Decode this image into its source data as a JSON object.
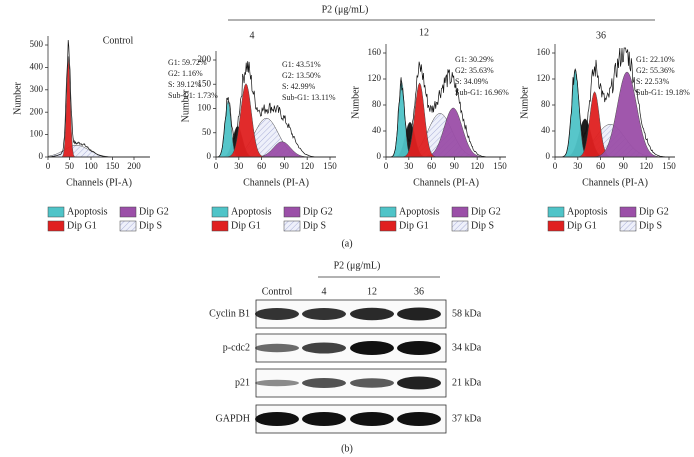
{
  "panel_a": {
    "header": "P2 (μg/mL)",
    "label": "(a)",
    "plots": [
      {
        "title": "Control",
        "stats": [
          "G1: 59.72%",
          "G2: 1.16%",
          "S: 39.12%",
          "Sub-G1: 1.73%"
        ],
        "xlabel": "Channels (PI-A)",
        "ylabel": "Number",
        "xticks": [
          "0",
          "50",
          "100",
          "150",
          "200"
        ],
        "yticks": [
          "0",
          "100",
          "200",
          "300",
          "400",
          "500"
        ],
        "legend": [
          "Apoptosis",
          "Dip G2",
          "Dip G1",
          "Dip S"
        ]
      },
      {
        "title": "4",
        "stats": [
          "G1: 43.51%",
          "G2: 13.50%",
          "S: 42.99%",
          "Sub-G1: 13.11%"
        ],
        "xlabel": "Channels (PI-A)",
        "ylabel": "Number",
        "xticks": [
          "0",
          "30",
          "60",
          "90",
          "120",
          "150"
        ],
        "yticks": [
          "0",
          "50",
          "100",
          "150",
          "200"
        ],
        "legend": [
          "Apoptosis",
          "Dip G2",
          "Dip G1",
          "Dip S"
        ]
      },
      {
        "title": "12",
        "stats": [
          "G1: 30.29%",
          "G2: 35.63%",
          "S: 34.09%",
          "Sub-G1: 16.96%"
        ],
        "xlabel": "Channels (PI-A)",
        "ylabel": "Number",
        "xticks": [
          "0",
          "30",
          "60",
          "90",
          "120",
          "150"
        ],
        "yticks": [
          "0",
          "40",
          "80",
          "120",
          "160"
        ],
        "legend": [
          "Apoptosis",
          "Dip G2",
          "Dip G1",
          "Dip S"
        ]
      },
      {
        "title": "36",
        "stats": [
          "G1: 22.10%",
          "G2: 55.36%",
          "S: 22.53%",
          "Sub-G1: 19.18%"
        ],
        "xlabel": "Channels (PI-A)",
        "ylabel": "Number",
        "xticks": [
          "0",
          "30",
          "60",
          "90",
          "120",
          "150"
        ],
        "yticks": [
          "0",
          "40",
          "80",
          "120",
          "160"
        ],
        "legend": [
          "Apoptosis",
          "Dip G2",
          "Dip G1",
          "Dip S"
        ]
      }
    ]
  },
  "panel_b": {
    "header": "P2 (μg/mL)",
    "label": "(b)",
    "lanes": [
      "Control",
      "4",
      "12",
      "36"
    ],
    "rows": [
      {
        "protein": "Cyclin B1",
        "size": "58 kDa"
      },
      {
        "protein": "p-cdc2",
        "size": "34 kDa"
      },
      {
        "protein": "p21",
        "size": "21 kDa"
      },
      {
        "protein": "GAPDH",
        "size": "37 kDa"
      }
    ]
  }
}
